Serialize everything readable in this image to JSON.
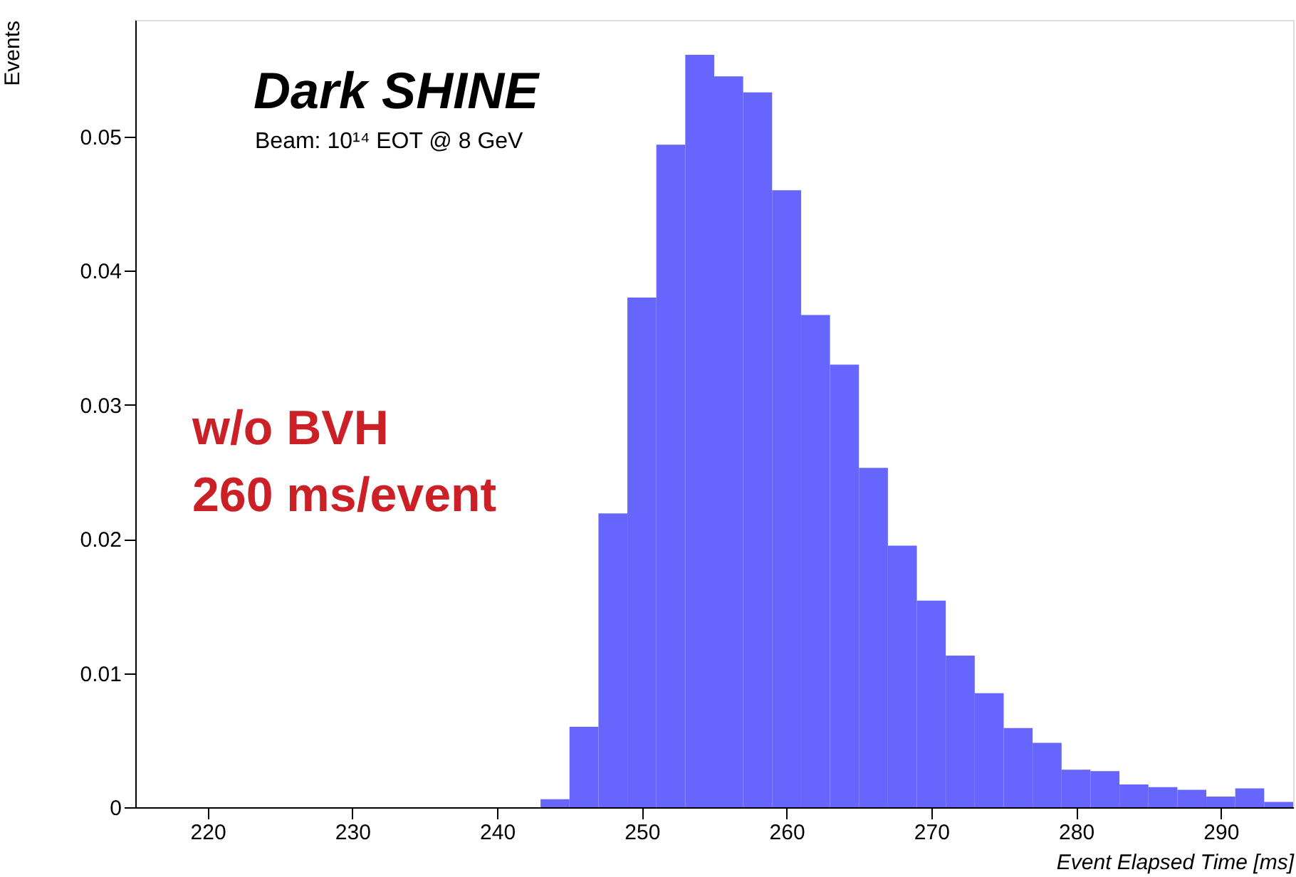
{
  "chart_data": {
    "type": "histogram",
    "title": "Dark SHINE",
    "subtitle": "Beam: 10¹⁴ EOT @ 8 GeV",
    "xlabel": "Event Elapsed Time [ms]",
    "ylabel": "Events",
    "annotations": [
      "w/o BVH",
      "260 ms/event"
    ],
    "bins": [
      243,
      245,
      247,
      249,
      251,
      253,
      255,
      257,
      259,
      261,
      263,
      265,
      267,
      269,
      271,
      273,
      275,
      277,
      279,
      281,
      283,
      285,
      287,
      289,
      291,
      293,
      295
    ],
    "values": [
      0.0006,
      0.006,
      0.0219,
      0.038,
      0.0494,
      0.0561,
      0.0545,
      0.0533,
      0.046,
      0.0367,
      0.033,
      0.0253,
      0.0195,
      0.0154,
      0.0113,
      0.0085,
      0.0059,
      0.0048,
      0.0028,
      0.0027,
      0.0017,
      0.0015,
      0.0013,
      0.0008,
      0.0014,
      0.0004
    ],
    "color": "#6666ff",
    "xlim": [
      215,
      295
    ],
    "xticks": [
      220,
      230,
      240,
      250,
      260,
      270,
      280,
      290
    ],
    "ylim": [
      0,
      0.0587
    ],
    "yticks": [
      0,
      0.01,
      0.02,
      0.03,
      0.04,
      0.05
    ],
    "grid": false
  }
}
